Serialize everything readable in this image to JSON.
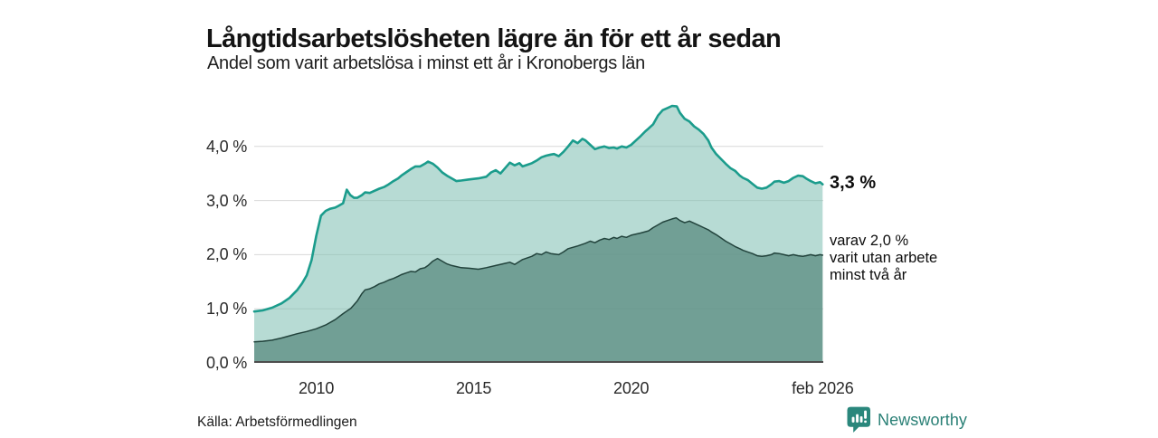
{
  "header": {
    "title": "Långtidsarbetslösheten lägre än för ett år sedan",
    "subtitle": "Andel som varit arbetslösa i minst ett år i Kronobergs län"
  },
  "footer": {
    "source": "Källa: Arbetsförmedlingen",
    "brand": "Newsworthy",
    "brand_color": "#2a8076",
    "brand_icon": "newsworthy-pin-bar-chart-icon"
  },
  "chart_data": {
    "type": "area",
    "title": "Långtidsarbetslösheten lägre än för ett år sedan",
    "subtitle": "Andel som varit arbetslösa i minst ett år i Kronobergs län",
    "unit": "%",
    "grid": true,
    "grid_color": "#d8d8d8",
    "axis_color": "#4d4d4d",
    "xlim": [
      2008.03,
      2026.1
    ],
    "ylim": [
      0,
      4.95
    ],
    "yticks": [
      {
        "value": 0,
        "label": "0,0 %"
      },
      {
        "value": 1,
        "label": "1,0 %"
      },
      {
        "value": 2,
        "label": "2,0 %"
      },
      {
        "value": 3,
        "label": "3,0 %"
      },
      {
        "value": 4,
        "label": "4,0 %"
      }
    ],
    "xticks": [
      {
        "value": 2010,
        "label": "2010"
      },
      {
        "value": 2015,
        "label": "2015"
      },
      {
        "value": 2020,
        "label": "2020"
      },
      {
        "value": 2026.08,
        "label": "feb 2026"
      }
    ],
    "annotations": [
      {
        "text": "3,3 %",
        "bold": true,
        "series": 0
      },
      {
        "text": "varav 2,0 %\nvarit utan arbete\nminst två år",
        "bold": false,
        "series": 1
      }
    ],
    "series": [
      {
        "name": "arbetslösa i minst ett år",
        "end_value": 3.3,
        "color": "#1b9c8c",
        "fill": "rgba(124,190,177,0.55)",
        "line_width": 2.6,
        "points": [
          [
            2008.03,
            0.95
          ],
          [
            2008.3,
            0.97
          ],
          [
            2008.6,
            1.02
          ],
          [
            2008.9,
            1.1
          ],
          [
            2009.15,
            1.2
          ],
          [
            2009.4,
            1.35
          ],
          [
            2009.55,
            1.47
          ],
          [
            2009.7,
            1.62
          ],
          [
            2009.85,
            1.9
          ],
          [
            2010.0,
            2.35
          ],
          [
            2010.15,
            2.72
          ],
          [
            2010.3,
            2.81
          ],
          [
            2010.45,
            2.85
          ],
          [
            2010.6,
            2.87
          ],
          [
            2010.7,
            2.9
          ],
          [
            2010.85,
            2.95
          ],
          [
            2010.97,
            3.2
          ],
          [
            2011.08,
            3.1
          ],
          [
            2011.2,
            3.05
          ],
          [
            2011.3,
            3.05
          ],
          [
            2011.45,
            3.1
          ],
          [
            2011.55,
            3.15
          ],
          [
            2011.7,
            3.14
          ],
          [
            2011.85,
            3.18
          ],
          [
            2012.0,
            3.22
          ],
          [
            2012.15,
            3.25
          ],
          [
            2012.3,
            3.3
          ],
          [
            2012.45,
            3.36
          ],
          [
            2012.6,
            3.41
          ],
          [
            2012.7,
            3.46
          ],
          [
            2012.85,
            3.52
          ],
          [
            2013.0,
            3.58
          ],
          [
            2013.15,
            3.63
          ],
          [
            2013.3,
            3.63
          ],
          [
            2013.45,
            3.68
          ],
          [
            2013.55,
            3.72
          ],
          [
            2013.7,
            3.68
          ],
          [
            2013.85,
            3.61
          ],
          [
            2014.0,
            3.52
          ],
          [
            2014.15,
            3.46
          ],
          [
            2014.3,
            3.41
          ],
          [
            2014.45,
            3.36
          ],
          [
            2014.6,
            3.37
          ],
          [
            2014.85,
            3.39
          ],
          [
            2015.15,
            3.41
          ],
          [
            2015.4,
            3.44
          ],
          [
            2015.55,
            3.52
          ],
          [
            2015.7,
            3.56
          ],
          [
            2015.85,
            3.5
          ],
          [
            2016.0,
            3.6
          ],
          [
            2016.15,
            3.7
          ],
          [
            2016.3,
            3.65
          ],
          [
            2016.45,
            3.69
          ],
          [
            2016.55,
            3.63
          ],
          [
            2016.7,
            3.66
          ],
          [
            2016.85,
            3.69
          ],
          [
            2017.0,
            3.74
          ],
          [
            2017.15,
            3.8
          ],
          [
            2017.3,
            3.83
          ],
          [
            2017.45,
            3.85
          ],
          [
            2017.55,
            3.86
          ],
          [
            2017.7,
            3.82
          ],
          [
            2017.85,
            3.9
          ],
          [
            2018.0,
            4.0
          ],
          [
            2018.15,
            4.11
          ],
          [
            2018.3,
            4.06
          ],
          [
            2018.45,
            4.14
          ],
          [
            2018.55,
            4.11
          ],
          [
            2018.7,
            4.03
          ],
          [
            2018.85,
            3.95
          ],
          [
            2019.0,
            3.98
          ],
          [
            2019.15,
            4.0
          ],
          [
            2019.3,
            3.97
          ],
          [
            2019.45,
            3.98
          ],
          [
            2019.55,
            3.96
          ],
          [
            2019.7,
            4.0
          ],
          [
            2019.85,
            3.98
          ],
          [
            2020.0,
            4.03
          ],
          [
            2020.15,
            4.11
          ],
          [
            2020.3,
            4.19
          ],
          [
            2020.45,
            4.28
          ],
          [
            2020.55,
            4.33
          ],
          [
            2020.7,
            4.41
          ],
          [
            2020.85,
            4.57
          ],
          [
            2021.0,
            4.67
          ],
          [
            2021.15,
            4.71
          ],
          [
            2021.3,
            4.75
          ],
          [
            2021.45,
            4.74
          ],
          [
            2021.55,
            4.62
          ],
          [
            2021.7,
            4.51
          ],
          [
            2021.85,
            4.46
          ],
          [
            2022.0,
            4.37
          ],
          [
            2022.15,
            4.31
          ],
          [
            2022.3,
            4.23
          ],
          [
            2022.45,
            4.11
          ],
          [
            2022.55,
            3.98
          ],
          [
            2022.7,
            3.86
          ],
          [
            2022.85,
            3.77
          ],
          [
            2023.0,
            3.68
          ],
          [
            2023.15,
            3.6
          ],
          [
            2023.3,
            3.55
          ],
          [
            2023.45,
            3.46
          ],
          [
            2023.55,
            3.42
          ],
          [
            2023.7,
            3.38
          ],
          [
            2023.85,
            3.31
          ],
          [
            2024.0,
            3.24
          ],
          [
            2024.15,
            3.22
          ],
          [
            2024.3,
            3.24
          ],
          [
            2024.45,
            3.3
          ],
          [
            2024.55,
            3.35
          ],
          [
            2024.7,
            3.36
          ],
          [
            2024.85,
            3.33
          ],
          [
            2025.0,
            3.36
          ],
          [
            2025.15,
            3.42
          ],
          [
            2025.3,
            3.46
          ],
          [
            2025.45,
            3.45
          ],
          [
            2025.55,
            3.41
          ],
          [
            2025.7,
            3.36
          ],
          [
            2025.85,
            3.32
          ],
          [
            2026.0,
            3.34
          ],
          [
            2026.08,
            3.3
          ]
        ]
      },
      {
        "name": "varav utan arbete minst två år",
        "end_value": 2.0,
        "color": "#22433c",
        "fill": "rgba(95,144,133,0.80)",
        "line_width": 1.5,
        "points": [
          [
            2008.03,
            0.39
          ],
          [
            2008.3,
            0.4
          ],
          [
            2008.6,
            0.42
          ],
          [
            2008.9,
            0.46
          ],
          [
            2009.15,
            0.5
          ],
          [
            2009.4,
            0.54
          ],
          [
            2009.7,
            0.58
          ],
          [
            2010.0,
            0.63
          ],
          [
            2010.3,
            0.7
          ],
          [
            2010.6,
            0.8
          ],
          [
            2010.85,
            0.91
          ],
          [
            2011.1,
            1.01
          ],
          [
            2011.3,
            1.14
          ],
          [
            2011.45,
            1.28
          ],
          [
            2011.55,
            1.35
          ],
          [
            2011.7,
            1.37
          ],
          [
            2011.85,
            1.41
          ],
          [
            2012.0,
            1.46
          ],
          [
            2012.15,
            1.49
          ],
          [
            2012.3,
            1.53
          ],
          [
            2012.45,
            1.56
          ],
          [
            2012.6,
            1.6
          ],
          [
            2012.7,
            1.63
          ],
          [
            2012.85,
            1.66
          ],
          [
            2013.0,
            1.69
          ],
          [
            2013.15,
            1.68
          ],
          [
            2013.3,
            1.74
          ],
          [
            2013.45,
            1.76
          ],
          [
            2013.55,
            1.8
          ],
          [
            2013.7,
            1.88
          ],
          [
            2013.85,
            1.93
          ],
          [
            2014.0,
            1.88
          ],
          [
            2014.15,
            1.83
          ],
          [
            2014.3,
            1.8
          ],
          [
            2014.6,
            1.76
          ],
          [
            2014.85,
            1.75
          ],
          [
            2015.15,
            1.73
          ],
          [
            2015.4,
            1.76
          ],
          [
            2015.7,
            1.8
          ],
          [
            2016.0,
            1.84
          ],
          [
            2016.15,
            1.86
          ],
          [
            2016.3,
            1.82
          ],
          [
            2016.55,
            1.91
          ],
          [
            2016.85,
            1.97
          ],
          [
            2017.0,
            2.02
          ],
          [
            2017.15,
            2.0
          ],
          [
            2017.3,
            2.05
          ],
          [
            2017.45,
            2.02
          ],
          [
            2017.7,
            2.0
          ],
          [
            2017.85,
            2.05
          ],
          [
            2018.0,
            2.11
          ],
          [
            2018.3,
            2.16
          ],
          [
            2018.55,
            2.21
          ],
          [
            2018.7,
            2.25
          ],
          [
            2018.85,
            2.22
          ],
          [
            2019.0,
            2.27
          ],
          [
            2019.15,
            2.3
          ],
          [
            2019.3,
            2.28
          ],
          [
            2019.45,
            2.32
          ],
          [
            2019.55,
            2.3
          ],
          [
            2019.7,
            2.34
          ],
          [
            2019.85,
            2.32
          ],
          [
            2020.0,
            2.36
          ],
          [
            2020.3,
            2.4
          ],
          [
            2020.55,
            2.44
          ],
          [
            2020.7,
            2.5
          ],
          [
            2020.85,
            2.55
          ],
          [
            2021.0,
            2.6
          ],
          [
            2021.15,
            2.63
          ],
          [
            2021.3,
            2.66
          ],
          [
            2021.43,
            2.68
          ],
          [
            2021.55,
            2.63
          ],
          [
            2021.7,
            2.59
          ],
          [
            2021.85,
            2.62
          ],
          [
            2022.0,
            2.58
          ],
          [
            2022.15,
            2.54
          ],
          [
            2022.3,
            2.5
          ],
          [
            2022.45,
            2.46
          ],
          [
            2022.55,
            2.42
          ],
          [
            2022.7,
            2.37
          ],
          [
            2022.85,
            2.31
          ],
          [
            2023.0,
            2.25
          ],
          [
            2023.15,
            2.2
          ],
          [
            2023.3,
            2.15
          ],
          [
            2023.45,
            2.11
          ],
          [
            2023.55,
            2.08
          ],
          [
            2023.7,
            2.05
          ],
          [
            2023.85,
            2.02
          ],
          [
            2024.0,
            1.98
          ],
          [
            2024.15,
            1.97
          ],
          [
            2024.3,
            1.98
          ],
          [
            2024.45,
            2.0
          ],
          [
            2024.55,
            2.03
          ],
          [
            2024.7,
            2.02
          ],
          [
            2024.85,
            2.0
          ],
          [
            2025.0,
            1.98
          ],
          [
            2025.15,
            2.0
          ],
          [
            2025.3,
            1.98
          ],
          [
            2025.45,
            1.97
          ],
          [
            2025.55,
            1.98
          ],
          [
            2025.7,
            2.0
          ],
          [
            2025.85,
            1.98
          ],
          [
            2026.0,
            2.0
          ],
          [
            2026.08,
            1.99
          ]
        ]
      }
    ]
  }
}
